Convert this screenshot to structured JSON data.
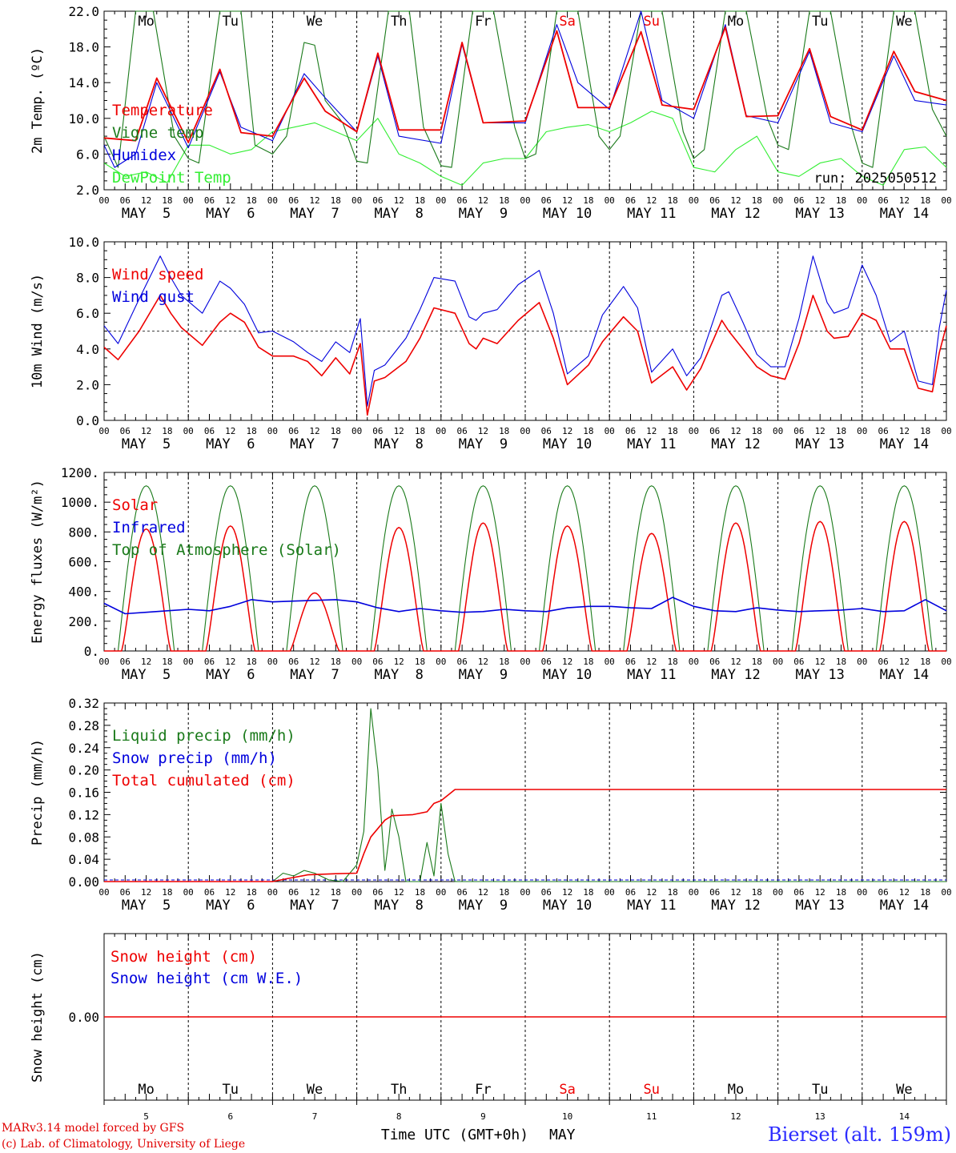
{
  "footer": {
    "credit_line1": "MARv3.14 model forced by GFS",
    "credit_line2": "(c) Lab. of Climatology, University of Liege",
    "station": "Bierset (alt. 159m)",
    "x_axis_title": "Time UTC (GMT+0h)",
    "month": "MAY"
  },
  "colors": {
    "red": "#ee0000",
    "green": "#1a7a1a",
    "blue": "#0000dd",
    "lightgreen": "#33ee33",
    "weekend": "#ee0000",
    "text": "#000000",
    "grid": "#000000"
  },
  "chart_data": [
    {
      "id": "temp",
      "type": "line",
      "ylabel": "2m Temp. (ºC)",
      "ylim": [
        2,
        22
      ],
      "yticks": [
        "2.0",
        "6.0",
        "10.0",
        "14.0",
        "18.0",
        "22.0"
      ],
      "run_label": "run: 2025050512",
      "weekday_labels": [
        "Mo",
        "Tu",
        "We",
        "Th",
        "Fr",
        "Sa",
        "Su",
        "Mo",
        "Tu",
        "We"
      ],
      "weekend_flags": [
        false,
        false,
        false,
        false,
        false,
        true,
        true,
        false,
        false,
        false
      ],
      "hour_ticks": [
        "00",
        "06",
        "12",
        "18"
      ],
      "day_labels": [
        "MAY  5",
        "MAY  6",
        "MAY  7",
        "MAY  8",
        "MAY  9",
        "MAY 10",
        "MAY 11",
        "MAY 12",
        "MAY 13",
        "MAY 14"
      ],
      "series": [
        {
          "name": "Temperature",
          "color": "red",
          "x": [
            0,
            9,
            15,
            24,
            33,
            39,
            48,
            57,
            63,
            72,
            78,
            84,
            96,
            102,
            108,
            120,
            129,
            135,
            144,
            153,
            159,
            168,
            177,
            183,
            192,
            201,
            207,
            216,
            225,
            231,
            240
          ],
          "y": [
            7.8,
            7.5,
            14.5,
            7.3,
            15.5,
            8.4,
            8.0,
            14.5,
            10.8,
            8.5,
            17.3,
            8.7,
            8.7,
            18.5,
            9.5,
            9.7,
            19.8,
            11.2,
            11.2,
            19.7,
            11.5,
            11.0,
            20.2,
            10.2,
            10.3,
            17.8,
            10.2,
            8.7,
            17.5,
            13.0,
            12.0
          ]
        },
        {
          "name": "Vigne temp",
          "color": "green",
          "x": [
            0,
            4,
            9,
            14,
            20,
            24,
            27,
            33,
            39,
            43,
            48,
            52,
            57,
            60,
            63,
            68,
            72,
            75,
            81,
            87,
            91,
            96,
            99,
            105,
            111,
            117,
            120,
            123,
            129,
            135,
            141,
            144,
            147,
            153,
            159,
            165,
            168,
            171,
            177,
            183,
            189,
            192,
            195,
            201,
            207,
            213,
            216,
            219,
            225,
            231,
            236,
            240
          ],
          "y": [
            8.0,
            4.5,
            22.0,
            22.0,
            8.0,
            5.5,
            5.0,
            22.0,
            22.0,
            7.0,
            6.0,
            8.0,
            18.5,
            18.2,
            12.0,
            9.5,
            5.2,
            5.0,
            22.0,
            22.0,
            9.0,
            4.7,
            4.5,
            22.0,
            22.0,
            9.0,
            5.5,
            6.0,
            22.0,
            22.0,
            8.0,
            6.5,
            8.0,
            22.0,
            22.0,
            8.5,
            5.5,
            6.5,
            22.0,
            22.0,
            10.0,
            7.0,
            6.5,
            22.0,
            22.0,
            9.0,
            5.0,
            4.5,
            22.0,
            22.0,
            11.0,
            8.0
          ]
        },
        {
          "name": "Humidex",
          "color": "blue",
          "x": [
            0,
            3,
            9,
            15,
            24,
            33,
            39,
            48,
            57,
            63,
            72,
            78,
            84,
            96,
            102,
            108,
            120,
            129,
            135,
            144,
            153,
            159,
            168,
            177,
            183,
            192,
            201,
            207,
            216,
            225,
            231,
            240
          ],
          "y": [
            7.0,
            4.5,
            6.0,
            14.0,
            6.7,
            15.2,
            9.0,
            7.5,
            15.0,
            12.3,
            8.5,
            17.0,
            8.0,
            7.2,
            18.3,
            9.5,
            9.5,
            20.5,
            14.0,
            11.0,
            22.0,
            12.0,
            10.0,
            20.5,
            10.3,
            9.5,
            17.5,
            9.5,
            8.5,
            17.0,
            12.0,
            11.5
          ]
        },
        {
          "name": "DewPoint Temp",
          "color": "lightgreen",
          "x": [
            0,
            6,
            12,
            18,
            24,
            30,
            36,
            42,
            48,
            54,
            60,
            66,
            72,
            78,
            84,
            90,
            96,
            102,
            108,
            114,
            120,
            126,
            132,
            138,
            144,
            150,
            156,
            162,
            168,
            174,
            180,
            186,
            192,
            198,
            204,
            210,
            216,
            222,
            228,
            234,
            240
          ],
          "y": [
            5.0,
            3.5,
            4.0,
            2.8,
            7.0,
            7.0,
            6.0,
            6.5,
            8.5,
            9.0,
            9.5,
            8.5,
            7.5,
            10.0,
            6.0,
            5.0,
            3.5,
            2.5,
            5.0,
            5.5,
            5.5,
            8.5,
            9.0,
            9.3,
            8.5,
            9.5,
            10.8,
            10.0,
            4.5,
            4.0,
            6.5,
            8.0,
            4.0,
            3.5,
            5.0,
            5.5,
            3.5,
            2.5,
            6.5,
            6.8,
            4.5
          ]
        }
      ]
    },
    {
      "id": "wind",
      "type": "line",
      "ylabel": "10m Wind (m/s)",
      "ylim": [
        0,
        10
      ],
      "yticks": [
        "0.0",
        "2.0",
        "4.0",
        "6.0",
        "8.0",
        "10.0"
      ],
      "hour_ticks": [
        "00",
        "06",
        "12",
        "18"
      ],
      "day_labels": [
        "MAY  5",
        "MAY  6",
        "MAY  7",
        "MAY  8",
        "MAY  9",
        "MAY 10",
        "MAY 11",
        "MAY 12",
        "MAY 13",
        "MAY 14"
      ],
      "reference_line": 5.0,
      "series": [
        {
          "name": "Wind speed",
          "color": "red",
          "x": [
            0,
            4,
            10,
            16,
            19,
            22,
            28,
            33,
            36,
            40,
            44,
            48,
            54,
            58,
            62,
            66,
            70,
            73,
            75,
            77,
            80,
            86,
            90,
            94,
            100,
            104,
            106,
            108,
            112,
            118,
            124,
            128,
            132,
            138,
            142,
            148,
            152,
            156,
            162,
            166,
            170,
            176,
            178,
            182,
            186,
            190,
            194,
            198,
            202,
            206,
            208,
            212,
            216,
            220,
            224,
            228,
            232,
            236,
            238,
            240
          ],
          "y": [
            4.1,
            3.4,
            5.0,
            7.0,
            6.0,
            5.2,
            4.2,
            5.5,
            6.0,
            5.5,
            4.1,
            3.6,
            3.6,
            3.3,
            2.5,
            3.5,
            2.6,
            4.3,
            0.3,
            2.2,
            2.4,
            3.3,
            4.6,
            6.3,
            6.0,
            4.3,
            4.0,
            4.6,
            4.3,
            5.6,
            6.6,
            4.6,
            2.0,
            3.1,
            4.4,
            5.8,
            5.0,
            2.1,
            3.0,
            1.7,
            2.9,
            5.6,
            5.0,
            4.0,
            3.0,
            2.5,
            2.3,
            4.3,
            7.0,
            5.0,
            4.6,
            4.7,
            6.0,
            5.6,
            4.0,
            4.0,
            1.8,
            1.6,
            3.8,
            5.3
          ]
        },
        {
          "name": "Wind gust",
          "color": "blue",
          "x": [
            0,
            4,
            10,
            16,
            19,
            22,
            28,
            33,
            36,
            40,
            44,
            48,
            54,
            58,
            62,
            66,
            70,
            73,
            75,
            77,
            80,
            86,
            90,
            94,
            100,
            104,
            106,
            108,
            112,
            118,
            124,
            128,
            132,
            138,
            142,
            148,
            152,
            156,
            162,
            166,
            170,
            176,
            178,
            182,
            186,
            190,
            194,
            198,
            202,
            206,
            208,
            212,
            216,
            220,
            224,
            228,
            232,
            236,
            238,
            240
          ],
          "y": [
            5.3,
            4.3,
            6.8,
            9.2,
            8.0,
            7.0,
            6.0,
            7.8,
            7.4,
            6.5,
            4.9,
            5.0,
            4.4,
            3.8,
            3.3,
            4.4,
            3.8,
            5.7,
            0.8,
            2.8,
            3.1,
            4.6,
            6.2,
            8.0,
            7.8,
            5.8,
            5.6,
            6.0,
            6.2,
            7.6,
            8.4,
            6.0,
            2.6,
            3.6,
            5.9,
            7.5,
            6.3,
            2.7,
            4.0,
            2.5,
            3.5,
            7.0,
            7.2,
            5.5,
            3.7,
            3.0,
            3.0,
            5.7,
            9.2,
            6.6,
            6.0,
            6.3,
            8.7,
            7.0,
            4.4,
            5.0,
            2.2,
            2.0,
            5.2,
            7.3
          ]
        }
      ]
    },
    {
      "id": "energy",
      "type": "line",
      "ylabel": "Energy fluxes (W/m²)",
      "ylim": [
        0,
        1200
      ],
      "yticks": [
        "0.",
        "200.",
        "400.",
        "600.",
        "800.",
        "1000.",
        "1200."
      ],
      "hour_ticks": [
        "00",
        "06",
        "12",
        "18"
      ],
      "day_labels": [
        "MAY  5",
        "MAY  6",
        "MAY  7",
        "MAY  8",
        "MAY  9",
        "MAY 10",
        "MAY 11",
        "MAY 12",
        "MAY 13",
        "MAY 14"
      ],
      "solar_peaks": [
        820,
        840,
        390,
        830,
        860,
        840,
        790,
        860,
        870,
        870
      ],
      "toa_peak": 1110,
      "infrared": {
        "x": [
          0,
          6,
          12,
          18,
          24,
          30,
          36,
          42,
          48,
          54,
          60,
          66,
          72,
          78,
          84,
          90,
          96,
          102,
          108,
          114,
          120,
          126,
          132,
          138,
          144,
          150,
          156,
          162,
          168,
          174,
          180,
          186,
          192,
          198,
          204,
          210,
          216,
          222,
          228,
          234,
          240
        ],
        "y": [
          320,
          250,
          260,
          270,
          280,
          270,
          300,
          345,
          330,
          335,
          340,
          345,
          330,
          290,
          265,
          285,
          270,
          260,
          265,
          280,
          270,
          265,
          290,
          300,
          300,
          290,
          285,
          360,
          300,
          270,
          265,
          290,
          275,
          265,
          270,
          275,
          285,
          265,
          270,
          345,
          270
        ]
      },
      "series": [
        {
          "name": "Solar",
          "color": "red"
        },
        {
          "name": "Infrared",
          "color": "blue"
        },
        {
          "name": "Top of Atmosphere (Solar)",
          "color": "green"
        }
      ]
    },
    {
      "id": "precip",
      "type": "line",
      "ylabel": "Precip (mm/h)",
      "ylim": [
        0,
        0.32
      ],
      "yticks": [
        "0.00",
        "0.04",
        "0.08",
        "0.12",
        "0.16",
        "0.20",
        "0.24",
        "0.28",
        "0.32"
      ],
      "hour_ticks": [
        "00",
        "06",
        "12",
        "18"
      ],
      "day_labels": [
        "MAY  5",
        "MAY  6",
        "MAY  7",
        "MAY  8",
        "MAY  9",
        "MAY 10",
        "MAY 11",
        "MAY 12",
        "MAY 13",
        "MAY 14"
      ],
      "series": [
        {
          "name": "Liquid precip (mm/h)",
          "color": "green",
          "x": [
            0,
            48,
            51,
            54,
            57,
            60,
            64,
            68,
            72,
            74,
            76,
            78,
            80,
            81,
            82,
            84,
            86,
            88,
            90,
            92,
            94,
            96,
            98,
            100,
            102,
            104,
            240
          ],
          "y": [
            0,
            0,
            0.015,
            0.01,
            0.02,
            0.015,
            0.003,
            0,
            0.03,
            0.09,
            0.31,
            0.2,
            0.02,
            0.07,
            0.13,
            0.08,
            0,
            0,
            0,
            0.07,
            0.01,
            0.14,
            0.05,
            0,
            0,
            0,
            0
          ]
        },
        {
          "name": "Snow precip (mm/h)",
          "color": "blue",
          "x": [
            0,
            240
          ],
          "y": [
            0,
            0
          ]
        },
        {
          "name": "Total cumulated (cm)",
          "color": "red",
          "x": [
            0,
            48,
            52,
            58,
            66,
            72,
            74,
            76,
            78,
            80,
            82,
            88,
            92,
            94,
            96,
            98,
            100,
            240
          ],
          "y": [
            0,
            0,
            0.005,
            0.012,
            0.014,
            0.015,
            0.05,
            0.08,
            0.095,
            0.11,
            0.118,
            0.12,
            0.125,
            0.14,
            0.145,
            0.155,
            0.165,
            0.165
          ]
        }
      ]
    },
    {
      "id": "snow",
      "type": "line",
      "ylabel": "Snow height (cm)",
      "ytick": "0.00",
      "weekday_labels": [
        "Mo",
        "Tu",
        "We",
        "Th",
        "Fr",
        "Sa",
        "Su",
        "Mo",
        "Tu",
        "We"
      ],
      "weekend_flags": [
        false,
        false,
        false,
        false,
        false,
        true,
        true,
        false,
        false,
        false
      ],
      "day_numbers": [
        "5",
        "6",
        "7",
        "8",
        "9",
        "10",
        "11",
        "12",
        "13",
        "14"
      ],
      "series": [
        {
          "name": "Snow height (cm)",
          "color": "red",
          "x": [
            0,
            240
          ],
          "y": [
            0,
            0
          ]
        },
        {
          "name": "Snow height (cm W.E.)",
          "color": "blue",
          "x": [
            0,
            240
          ],
          "y": [
            0,
            0
          ]
        }
      ]
    }
  ]
}
